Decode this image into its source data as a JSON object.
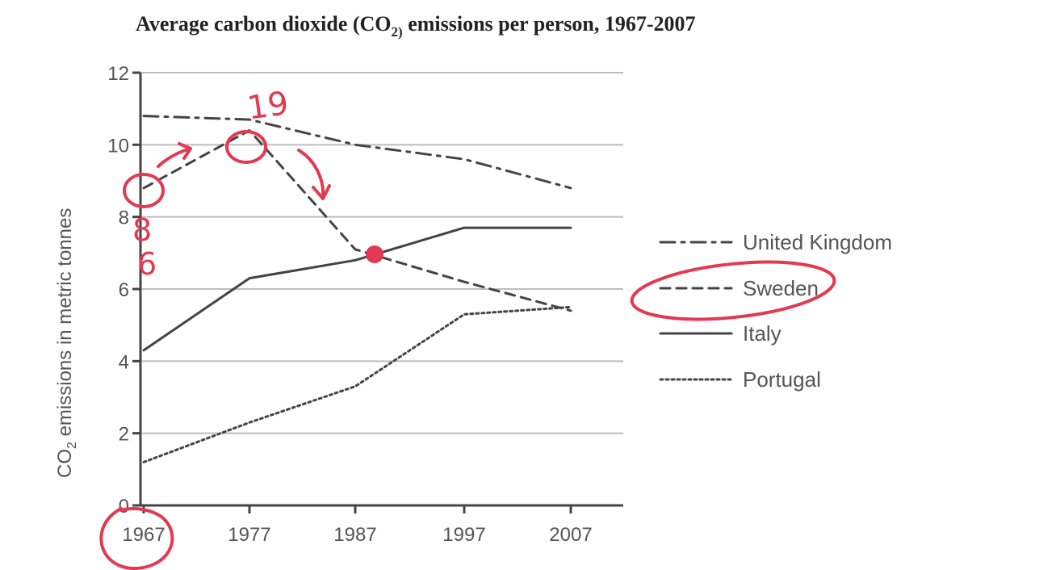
{
  "chart_data": {
    "type": "line",
    "title_main": "Average carbon dioxide (CO",
    "title_sub": "2)",
    "title_tail": " emissions per person, 1967-2007",
    "ylabel_prefix": "CO",
    "ylabel_sub": "2",
    "ylabel_rest": " emissions in metric tonnes",
    "x": [
      "1967",
      "1977",
      "1987",
      "1997",
      "2007"
    ],
    "yticks": [
      "0",
      "2",
      "4",
      "6",
      "8",
      "10",
      "12"
    ],
    "ylim": [
      0,
      12
    ],
    "grid": true,
    "legend_position": "right",
    "series": [
      {
        "name": "United Kingdom",
        "style": "dashdot",
        "values": [
          10.8,
          10.7,
          10.0,
          9.6,
          8.8
        ]
      },
      {
        "name": "Sweden",
        "style": "dashed",
        "values": [
          8.8,
          10.4,
          7.1,
          6.2,
          5.4
        ]
      },
      {
        "name": "Italy",
        "style": "solid",
        "values": [
          4.3,
          6.3,
          6.8,
          7.7,
          7.7
        ]
      },
      {
        "name": "Portugal",
        "style": "dotted",
        "values": [
          1.2,
          2.3,
          3.3,
          5.3,
          5.5
        ]
      }
    ],
    "annotations": {
      "note_19": "19",
      "note_8": "8",
      "note_6": "6",
      "color": "#e23a52"
    }
  }
}
